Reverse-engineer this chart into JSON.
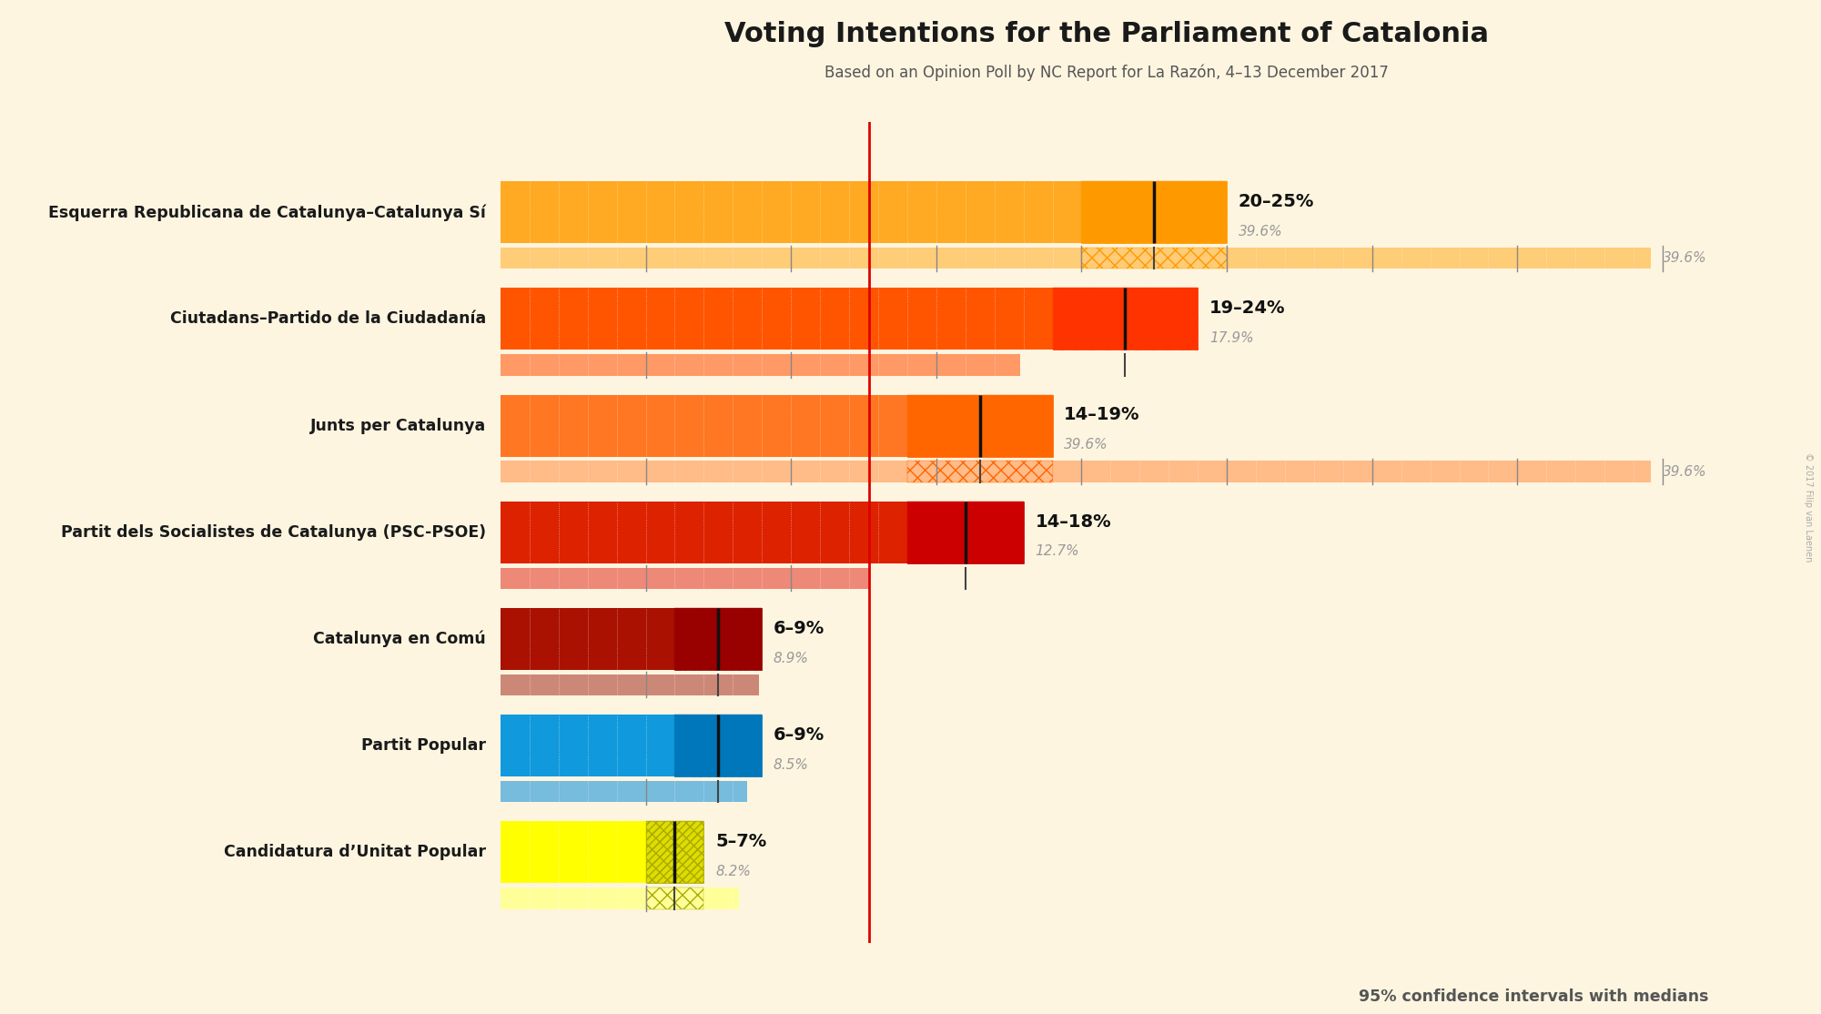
{
  "title": "Voting Intentions for the Parliament of Catalonia",
  "subtitle": "Based on an Opinion Poll by NC Report for La Razón, 4–13 December 2017",
  "copyright": "© 2017 Filip van Laenen",
  "footnote": "95% confidence intervals with medians",
  "background_color": "#fdf5e0",
  "parties": [
    {
      "name": "Esquerra Republicana de Catalunya–Catalunya Sí",
      "ci_low": 20,
      "ci_high": 25,
      "median": 22.5,
      "wide_high": 39.6,
      "label": "20–25%",
      "median_label": "39.6%",
      "bar_color": "#FF9900",
      "ci_color": "#FFAA22",
      "wide_color": "#FFCC77",
      "hatch_color": "#FF9900",
      "show_wide": true
    },
    {
      "name": "Ciutadans–Partido de la Ciudadanía",
      "ci_low": 19,
      "ci_high": 24,
      "median": 21.5,
      "wide_high": 17.9,
      "label": "19–24%",
      "median_label": "17.9%",
      "bar_color": "#FF3300",
      "ci_color": "#FF5500",
      "wide_color": "#FF9966",
      "hatch_color": "#FF3300",
      "show_wide": false
    },
    {
      "name": "Junts per Catalunya",
      "ci_low": 14,
      "ci_high": 19,
      "median": 16.5,
      "wide_high": 39.6,
      "label": "14–19%",
      "median_label": "39.6%",
      "bar_color": "#FF6600",
      "ci_color": "#FF7722",
      "wide_color": "#FFBB88",
      "hatch_color": "#FF6600",
      "show_wide": true
    },
    {
      "name": "Partit dels Socialistes de Catalunya (PSC-PSOE)",
      "ci_low": 14,
      "ci_high": 18,
      "median": 16.0,
      "wide_high": 12.7,
      "label": "14–18%",
      "median_label": "12.7%",
      "bar_color": "#CC0000",
      "ci_color": "#DD2200",
      "wide_color": "#EE8877",
      "hatch_color": "#CC0000",
      "show_wide": false
    },
    {
      "name": "Catalunya en Comú",
      "ci_low": 6,
      "ci_high": 9,
      "median": 7.5,
      "wide_high": 8.9,
      "label": "6–9%",
      "median_label": "8.9%",
      "bar_color": "#990000",
      "ci_color": "#AA1100",
      "wide_color": "#CC8877",
      "hatch_color": "#990000",
      "show_wide": false
    },
    {
      "name": "Partit Popular",
      "ci_low": 6,
      "ci_high": 9,
      "median": 7.5,
      "wide_high": 8.5,
      "label": "6–9%",
      "median_label": "8.5%",
      "bar_color": "#0077BB",
      "ci_color": "#1199DD",
      "wide_color": "#77BBDD",
      "hatch_color": "#0077BB",
      "show_wide": false
    },
    {
      "name": "Candidatura d’Unitat Popular",
      "ci_low": 5,
      "ci_high": 7,
      "median": 6.0,
      "wide_high": 8.2,
      "label": "5–7%",
      "median_label": "8.2%",
      "bar_color": "#DDDD00",
      "ci_color": "#FFFF00",
      "wide_color": "#FFFF99",
      "hatch_color": "#AAAA00",
      "show_wide": false
    }
  ],
  "median_line_value": 12.7,
  "x_max": 42,
  "bar_height": 0.58,
  "wide_bar_height": 0.2,
  "bar_gap": 0.04
}
